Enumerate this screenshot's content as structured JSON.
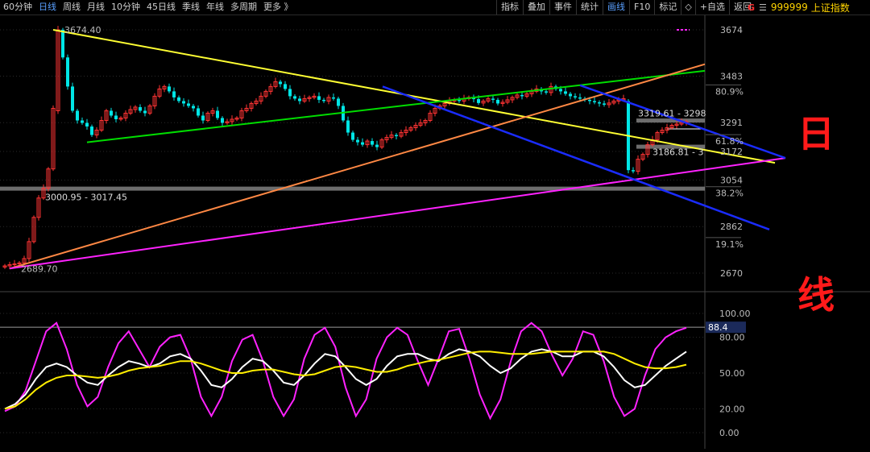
{
  "toolbar": {
    "period_tabs": [
      {
        "label": "60分钟",
        "active": false
      },
      {
        "label": "日线",
        "active": true
      },
      {
        "label": "周线",
        "active": false
      },
      {
        "label": "月线",
        "active": false
      },
      {
        "label": "10分钟",
        "active": false
      },
      {
        "label": "45日线",
        "active": false
      },
      {
        "label": "季线",
        "active": false
      },
      {
        "label": "年线",
        "active": false
      },
      {
        "label": "多周期",
        "active": false
      },
      {
        "label": "更多 》",
        "active": false
      }
    ],
    "tools": [
      {
        "label": "指标",
        "active": false
      },
      {
        "label": "叠加",
        "active": false
      },
      {
        "label": "事件",
        "active": false
      },
      {
        "label": "统计",
        "active": false
      },
      {
        "label": "画线",
        "active": true
      },
      {
        "label": "F10",
        "active": false
      },
      {
        "label": "标记",
        "active": false
      }
    ],
    "diamond_icon": "diamond-icon",
    "add_watch_label": "+自选",
    "back_label": "返回"
  },
  "stock": {
    "badge": "G",
    "menu_icon": "menu-icon",
    "code": "999999",
    "name": "上证指数"
  },
  "overlay_text": {
    "top_char": "日",
    "bottom_char": "线"
  },
  "colors": {
    "up": "#ff3333",
    "down": "#00e6e6",
    "yellow_line": "#ffff33",
    "green_line": "#00dd00",
    "orange_line": "#ff8844",
    "blue_line": "#1a2cff",
    "magenta_line": "#ff22ff",
    "gray_band": "#888888",
    "osc_white": "#ffffff",
    "osc_yellow": "#ffee00",
    "osc_magenta": "#ff22ff"
  },
  "price_axis": {
    "ticks": [
      "3674",
      "3483",
      "3291",
      "3172",
      "3054",
      "2862",
      "2670"
    ],
    "fib_labels": [
      "80.9%",
      "61.8%",
      "38.2%",
      "19.1%"
    ]
  },
  "annotations": {
    "high": "3674.40",
    "low": "2689.70",
    "band_low": "3000.95 - 3017.45",
    "band_mid": "3186.81 - 3",
    "band_top": "3319.61 - 3298"
  },
  "indicator": {
    "ticks": [
      "100.00",
      "80.00",
      "50.00",
      "20.00",
      "0.00"
    ],
    "current_value": "88.4"
  },
  "chart_data": {
    "type": "candlestick",
    "series": [
      {
        "name": "",
        "values": [
          2700,
          2705,
          2708,
          2712,
          2730,
          2800,
          2900,
          2980,
          3020,
          3100,
          3350,
          3674,
          3560,
          3440,
          3340,
          3300,
          3290,
          3275,
          3240,
          3260,
          3300,
          3340,
          3320,
          3305,
          3310,
          3330,
          3345,
          3355,
          3340,
          3330,
          3360,
          3400,
          3430,
          3440,
          3420,
          3395,
          3380,
          3370,
          3360,
          3350,
          3320,
          3300,
          3330,
          3340,
          3310,
          3290,
          3295,
          3305,
          3310,
          3340,
          3350,
          3370,
          3380,
          3400,
          3420,
          3440,
          3460,
          3450,
          3430,
          3400,
          3390,
          3380,
          3390,
          3395,
          3400,
          3385,
          3380,
          3395,
          3390,
          3360,
          3300,
          3250,
          3220,
          3210,
          3200,
          3215,
          3200,
          3190,
          3220,
          3230,
          3240,
          3235,
          3250,
          3260,
          3270,
          3280,
          3290,
          3300,
          3330,
          3350,
          3360,
          3370,
          3380,
          3385,
          3380,
          3390,
          3395,
          3388,
          3372,
          3380,
          3390,
          3385,
          3370,
          3375,
          3385,
          3395,
          3405,
          3400,
          3410,
          3420,
          3430,
          3420,
          3415,
          3440,
          3430,
          3420,
          3410,
          3400,
          3395,
          3390,
          3385,
          3380,
          3375,
          3370,
          3365,
          3372,
          3380,
          3385,
          3390,
          3095,
          3090,
          3140,
          3160,
          3200,
          3220,
          3250,
          3260,
          3270,
          3280,
          3285,
          3292,
          3295
        ]
      }
    ],
    "x_span": "dates not printed",
    "ylim": [
      2670,
      3720
    ],
    "indicator_ylim": [
      0,
      100
    ],
    "indicator_series": [
      {
        "name": "",
        "color": "magenta",
        "values": [
          18,
          22,
          35,
          60,
          85,
          92,
          70,
          40,
          22,
          30,
          55,
          75,
          85,
          70,
          55,
          72,
          80,
          82,
          62,
          30,
          14,
          30,
          60,
          78,
          82,
          60,
          30,
          14,
          28,
          62,
          82,
          88,
          72,
          38,
          14,
          28,
          62,
          80,
          88,
          82,
          60,
          40,
          62,
          85,
          87,
          62,
          32,
          12,
          28,
          60,
          85,
          92,
          85,
          65,
          48,
          62,
          85,
          82,
          60,
          30,
          14,
          20,
          48,
          70,
          80,
          85,
          88
        ]
      },
      {
        "name": "",
        "color": "white",
        "values": [
          20,
          24,
          32,
          45,
          55,
          58,
          55,
          48,
          42,
          40,
          48,
          55,
          60,
          58,
          55,
          58,
          64,
          66,
          62,
          52,
          40,
          38,
          45,
          55,
          62,
          60,
          52,
          42,
          40,
          48,
          58,
          66,
          64,
          55,
          45,
          40,
          45,
          56,
          64,
          66,
          66,
          62,
          60,
          66,
          70,
          68,
          64,
          56,
          50,
          54,
          62,
          68,
          70,
          68,
          64,
          64,
          68,
          68,
          64,
          55,
          44,
          38,
          40,
          48,
          56,
          62,
          68
        ]
      },
      {
        "name": "",
        "color": "yellow",
        "values": [
          20,
          22,
          28,
          36,
          42,
          46,
          48,
          48,
          47,
          46,
          47,
          49,
          52,
          54,
          55,
          56,
          58,
          60,
          60,
          58,
          55,
          52,
          50,
          50,
          52,
          53,
          53,
          51,
          49,
          48,
          49,
          52,
          55,
          56,
          55,
          53,
          51,
          51,
          53,
          56,
          58,
          60,
          61,
          63,
          65,
          67,
          68,
          68,
          67,
          66,
          66,
          66,
          67,
          68,
          68,
          68,
          68,
          68,
          68,
          66,
          62,
          58,
          55,
          54,
          54,
          55,
          57
        ]
      }
    ]
  }
}
